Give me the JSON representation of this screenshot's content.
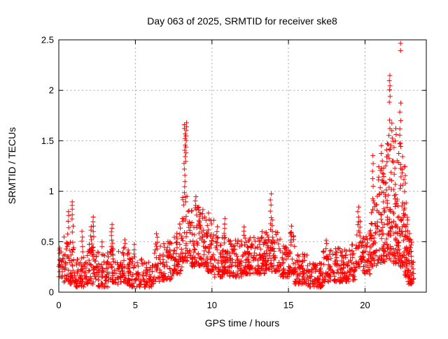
{
  "window": {
    "background": "#ffffff"
  },
  "chart_data": {
    "type": "scatter",
    "title": "Day 063 of 2025, SRMTID for receiver ske8",
    "xlabel": "GPS time / hours",
    "ylabel": "SRMTID / TECUs",
    "xlim": [
      0,
      24
    ],
    "ylim": [
      0,
      2.5
    ],
    "xticks": [
      0,
      5,
      10,
      15,
      20
    ],
    "xtick_labels": [
      "0",
      "5",
      "10",
      "15",
      "20"
    ],
    "yticks": [
      0,
      0.5,
      1,
      1.5,
      2,
      2.5
    ],
    "ytick_labels": [
      "0",
      "0.5",
      "1",
      "1.5",
      "2",
      "2.5"
    ],
    "grid": true,
    "legend_position": "none",
    "marker": "plus",
    "colors": {
      "marker": "#ff0000",
      "grid": "#a8a8a8",
      "axis": "#000000",
      "text": "#000000"
    },
    "seed": 42,
    "density_bins": [
      {
        "t0": 0.0,
        "t1": 0.3,
        "n": 22,
        "lo": 0.15,
        "hi": 0.5
      },
      {
        "t0": 0.3,
        "t1": 0.65,
        "n": 28,
        "lo": 0.1,
        "hi": 0.55
      },
      {
        "t0": 0.65,
        "t1": 1.1,
        "n": 40,
        "lo": 0.08,
        "hi": 0.5
      },
      {
        "t0": 1.1,
        "t1": 1.8,
        "n": 55,
        "lo": 0.05,
        "hi": 0.35
      },
      {
        "t0": 1.8,
        "t1": 2.45,
        "n": 55,
        "lo": 0.08,
        "hi": 0.5
      },
      {
        "t0": 2.45,
        "t1": 3.2,
        "n": 60,
        "lo": 0.05,
        "hi": 0.4
      },
      {
        "t0": 3.2,
        "t1": 3.7,
        "n": 40,
        "lo": 0.1,
        "hi": 0.5
      },
      {
        "t0": 3.7,
        "t1": 4.6,
        "n": 65,
        "lo": 0.08,
        "hi": 0.45
      },
      {
        "t0": 4.6,
        "t1": 5.45,
        "n": 60,
        "lo": 0.05,
        "hi": 0.35
      },
      {
        "t0": 5.45,
        "t1": 6.2,
        "n": 50,
        "lo": 0.05,
        "hi": 0.3
      },
      {
        "t0": 6.2,
        "t1": 6.65,
        "n": 30,
        "lo": 0.1,
        "hi": 0.48
      },
      {
        "t0": 6.65,
        "t1": 7.4,
        "n": 55,
        "lo": 0.12,
        "hi": 0.5
      },
      {
        "t0": 7.4,
        "t1": 8.05,
        "n": 55,
        "lo": 0.18,
        "hi": 0.6
      },
      {
        "t0": 8.05,
        "t1": 8.6,
        "n": 50,
        "lo": 0.3,
        "hi": 0.95
      },
      {
        "t0": 8.6,
        "t1": 9.15,
        "n": 55,
        "lo": 0.25,
        "hi": 0.88
      },
      {
        "t0": 9.15,
        "t1": 9.65,
        "n": 50,
        "lo": 0.25,
        "hi": 0.8
      },
      {
        "t0": 9.65,
        "t1": 10.15,
        "n": 50,
        "lo": 0.2,
        "hi": 0.72
      },
      {
        "t0": 10.15,
        "t1": 10.75,
        "n": 50,
        "lo": 0.15,
        "hi": 0.58
      },
      {
        "t0": 10.75,
        "t1": 11.15,
        "n": 38,
        "lo": 0.18,
        "hi": 0.6
      },
      {
        "t0": 11.15,
        "t1": 11.95,
        "n": 70,
        "lo": 0.15,
        "hi": 0.52
      },
      {
        "t0": 11.95,
        "t1": 12.35,
        "n": 40,
        "lo": 0.18,
        "hi": 0.55
      },
      {
        "t0": 12.35,
        "t1": 13.45,
        "n": 95,
        "lo": 0.18,
        "hi": 0.55
      },
      {
        "t0": 13.45,
        "t1": 13.8,
        "n": 35,
        "lo": 0.22,
        "hi": 0.6
      },
      {
        "t0": 13.8,
        "t1": 14.45,
        "n": 50,
        "lo": 0.2,
        "hi": 0.6
      },
      {
        "t0": 14.45,
        "t1": 15.05,
        "n": 50,
        "lo": 0.15,
        "hi": 0.5
      },
      {
        "t0": 15.05,
        "t1": 15.4,
        "n": 32,
        "lo": 0.18,
        "hi": 0.6
      },
      {
        "t0": 15.4,
        "t1": 16.25,
        "n": 70,
        "lo": 0.08,
        "hi": 0.38
      },
      {
        "t0": 16.25,
        "t1": 17.25,
        "n": 80,
        "lo": 0.05,
        "hi": 0.3
      },
      {
        "t0": 17.25,
        "t1": 18.05,
        "n": 65,
        "lo": 0.1,
        "hi": 0.45
      },
      {
        "t0": 18.05,
        "t1": 19.05,
        "n": 80,
        "lo": 0.1,
        "hi": 0.45
      },
      {
        "t0": 19.05,
        "t1": 19.45,
        "n": 32,
        "lo": 0.12,
        "hi": 0.5
      },
      {
        "t0": 19.45,
        "t1": 19.85,
        "n": 32,
        "lo": 0.25,
        "hi": 0.72
      },
      {
        "t0": 19.85,
        "t1": 20.35,
        "n": 45,
        "lo": 0.18,
        "hi": 0.6
      },
      {
        "t0": 20.35,
        "t1": 20.85,
        "n": 55,
        "lo": 0.25,
        "hi": 1.0
      },
      {
        "t0": 20.85,
        "t1": 21.35,
        "n": 65,
        "lo": 0.28,
        "hi": 1.25
      },
      {
        "t0": 21.35,
        "t1": 21.85,
        "n": 70,
        "lo": 0.3,
        "hi": 1.5
      },
      {
        "t0": 21.85,
        "t1": 22.25,
        "n": 60,
        "lo": 0.28,
        "hi": 1.45
      },
      {
        "t0": 22.25,
        "t1": 22.55,
        "n": 45,
        "lo": 0.25,
        "hi": 1.5
      },
      {
        "t0": 22.55,
        "t1": 22.8,
        "n": 45,
        "lo": 0.15,
        "hi": 0.95
      },
      {
        "t0": 22.8,
        "t1": 23.05,
        "n": 40,
        "lo": 0.08,
        "hi": 0.55
      },
      {
        "t0": 23.05,
        "t1": 23.2,
        "n": 8,
        "lo": 0.1,
        "hi": 0.35
      }
    ],
    "spike_columns": [
      {
        "x": 0.62,
        "ys": [
          0.58,
          0.64,
          0.7,
          0.76,
          0.8
        ]
      },
      {
        "x": 0.9,
        "ys": [
          0.6,
          0.66,
          0.72,
          0.77,
          0.82,
          0.86,
          0.89
        ]
      },
      {
        "x": 1.52,
        "ys": [
          0.4,
          0.45,
          0.5,
          0.55,
          0.6
        ]
      },
      {
        "x": 2.1,
        "ys": [
          0.52,
          0.56,
          0.61,
          0.65
        ]
      },
      {
        "x": 2.27,
        "ys": [
          0.55,
          0.6,
          0.65,
          0.7,
          0.74
        ]
      },
      {
        "x": 2.8,
        "ys": [
          0.45,
          0.5
        ]
      },
      {
        "x": 3.45,
        "ys": [
          0.52,
          0.56,
          0.6,
          0.64,
          0.67
        ]
      },
      {
        "x": 4.3,
        "ys": [
          0.44,
          0.48,
          0.52
        ]
      },
      {
        "x": 4.95,
        "ys": [
          0.38,
          0.42,
          0.47
        ]
      },
      {
        "x": 6.4,
        "ys": [
          0.5,
          0.54,
          0.58
        ]
      },
      {
        "x": 7.9,
        "ys": [
          0.58,
          0.63,
          0.68
        ]
      },
      {
        "x": 8.22,
        "ys": [
          0.98,
          1.04,
          1.1,
          1.16,
          1.22,
          1.28,
          1.34,
          1.4,
          1.46,
          1.52,
          1.57,
          1.62,
          1.66
        ]
      },
      {
        "x": 8.3,
        "ys": [
          1.3,
          1.38,
          1.44,
          1.5,
          1.55,
          1.6,
          1.64,
          1.68
        ]
      },
      {
        "x": 8.95,
        "ys": [
          0.86,
          0.9,
          0.95
        ]
      },
      {
        "x": 9.4,
        "ys": [
          0.78,
          0.82
        ]
      },
      {
        "x": 9.8,
        "ys": [
          0.72,
          0.78
        ]
      },
      {
        "x": 10.35,
        "ys": [
          0.6,
          0.65
        ]
      },
      {
        "x": 10.85,
        "ys": [
          0.63,
          0.68,
          0.73
        ]
      },
      {
        "x": 12.1,
        "ys": [
          0.56,
          0.6,
          0.65
        ]
      },
      {
        "x": 13.25,
        "ys": [
          0.55,
          0.6
        ]
      },
      {
        "x": 13.85,
        "ys": [
          0.62,
          0.68,
          0.74,
          0.8,
          0.86,
          0.92,
          0.97
        ]
      },
      {
        "x": 13.92,
        "ys": [
          0.6,
          0.66,
          0.72
        ]
      },
      {
        "x": 15.2,
        "ys": [
          0.55,
          0.6,
          0.65
        ]
      },
      {
        "x": 17.5,
        "ys": [
          0.48,
          0.52
        ]
      },
      {
        "x": 19.55,
        "ys": [
          0.7,
          0.75,
          0.8,
          0.85
        ]
      },
      {
        "x": 20.5,
        "ys": [
          1.05,
          1.12,
          1.2,
          1.28,
          1.35
        ]
      },
      {
        "x": 21.1,
        "ys": [
          1.3,
          1.38,
          1.45
        ]
      },
      {
        "x": 21.6,
        "ys": [
          1.55,
          1.62,
          1.7,
          1.88,
          1.94,
          2.0,
          2.05,
          2.1,
          2.15
        ]
      },
      {
        "x": 21.75,
        "ys": [
          1.52,
          1.6,
          1.68
        ]
      },
      {
        "x": 22.0,
        "ys": [
          1.5,
          1.56,
          1.62
        ]
      },
      {
        "x": 22.3,
        "ys": [
          1.55,
          1.62,
          1.7,
          1.78,
          1.88,
          2.39,
          2.46
        ]
      },
      {
        "x": 22.6,
        "ys": [
          1.0,
          1.08,
          1.16,
          1.25
        ]
      },
      {
        "x": 22.88,
        "ys": [
          0.45,
          0.52,
          0.58
        ]
      }
    ]
  }
}
